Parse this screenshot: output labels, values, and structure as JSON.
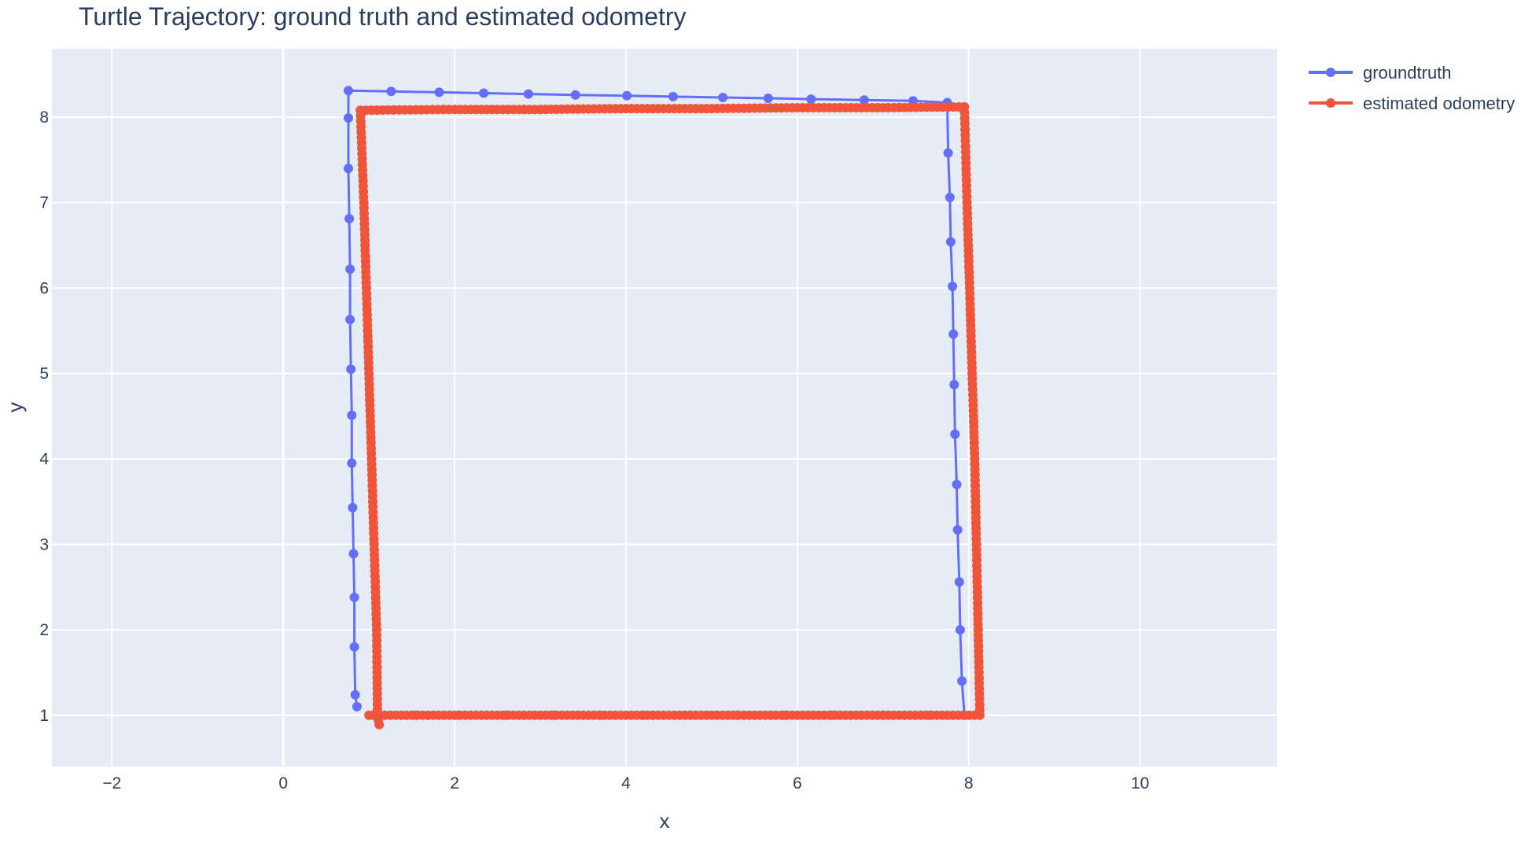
{
  "chart_data": {
    "type": "line",
    "title": "Turtle Trajectory: ground truth and estimated odometry",
    "xlabel": "x",
    "ylabel": "y",
    "xlim": [
      -2.7,
      11.6
    ],
    "ylim": [
      0.4,
      8.8
    ],
    "xticks": [
      -2,
      0,
      2,
      4,
      6,
      8,
      10
    ],
    "yticks": [
      1,
      2,
      3,
      4,
      5,
      6,
      7,
      8
    ],
    "xtick_labels": [
      "−2",
      "0",
      "2",
      "4",
      "6",
      "8",
      "10"
    ],
    "ytick_labels": [
      "1",
      "2",
      "3",
      "4",
      "5",
      "6",
      "7",
      "8"
    ],
    "grid": true,
    "legend_position": "top-right outside plot",
    "colors": {
      "plot_background": "#e5ecf6",
      "grid": "#ffffff",
      "text": "#2a3f5f"
    },
    "series": [
      {
        "name": "groundtruth",
        "color": "#636efa",
        "mode": "lines+markers",
        "points": [
          [
            0.86,
            1.1
          ],
          [
            0.84,
            1.24
          ],
          [
            0.83,
            1.8
          ],
          [
            0.83,
            2.38
          ],
          [
            0.82,
            2.89
          ],
          [
            0.81,
            3.43
          ],
          [
            0.8,
            3.95
          ],
          [
            0.8,
            4.51
          ],
          [
            0.79,
            5.05
          ],
          [
            0.78,
            5.63
          ],
          [
            0.78,
            6.22
          ],
          [
            0.77,
            6.81
          ],
          [
            0.76,
            7.4
          ],
          [
            0.76,
            7.99
          ],
          [
            0.76,
            8.31
          ],
          [
            1.26,
            8.3
          ],
          [
            1.82,
            8.29
          ],
          [
            2.34,
            8.28
          ],
          [
            2.86,
            8.27
          ],
          [
            3.41,
            8.26
          ],
          [
            4.01,
            8.25
          ],
          [
            4.55,
            8.24
          ],
          [
            5.13,
            8.23
          ],
          [
            5.66,
            8.22
          ],
          [
            6.16,
            8.21
          ],
          [
            6.78,
            8.2
          ],
          [
            7.35,
            8.19
          ],
          [
            7.75,
            8.17
          ],
          [
            7.76,
            7.58
          ],
          [
            7.78,
            7.06
          ],
          [
            7.79,
            6.54
          ],
          [
            7.81,
            6.02
          ],
          [
            7.82,
            5.46
          ],
          [
            7.83,
            4.87
          ],
          [
            7.84,
            4.29
          ],
          [
            7.86,
            3.7
          ],
          [
            7.87,
            3.17
          ],
          [
            7.89,
            2.56
          ],
          [
            7.9,
            2.0
          ],
          [
            7.92,
            1.4
          ],
          [
            7.95,
            1.0
          ],
          [
            7.55,
            1.0
          ],
          [
            7.0,
            1.0
          ],
          [
            6.4,
            1.0
          ],
          [
            5.85,
            1.0
          ],
          [
            5.3,
            1.0
          ],
          [
            4.75,
            1.0
          ],
          [
            4.2,
            1.0
          ],
          [
            3.7,
            1.0
          ],
          [
            3.15,
            1.0
          ],
          [
            2.6,
            1.0
          ],
          [
            2.05,
            1.0
          ],
          [
            1.55,
            1.0
          ],
          [
            1.05,
            1.0
          ]
        ]
      },
      {
        "name": "estimated odometry",
        "color": "#ef553b",
        "mode": "lines+markers",
        "points": [
          [
            1.12,
            0.89
          ],
          [
            1.1,
            1.0
          ],
          [
            1.09,
            2.0
          ],
          [
            1.06,
            3.0
          ],
          [
            1.03,
            4.0
          ],
          [
            1.0,
            5.0
          ],
          [
            0.97,
            6.0
          ],
          [
            0.94,
            7.0
          ],
          [
            0.9,
            8.08
          ],
          [
            2.0,
            8.09
          ],
          [
            3.0,
            8.09
          ],
          [
            4.0,
            8.1
          ],
          [
            5.0,
            8.1
          ],
          [
            6.0,
            8.11
          ],
          [
            7.0,
            8.11
          ],
          [
            7.95,
            8.12
          ],
          [
            7.98,
            7.0
          ],
          [
            8.01,
            6.0
          ],
          [
            8.04,
            5.0
          ],
          [
            8.07,
            4.0
          ],
          [
            8.09,
            3.0
          ],
          [
            8.11,
            2.0
          ],
          [
            8.13,
            1.0
          ],
          [
            7.0,
            1.0
          ],
          [
            6.0,
            1.0
          ],
          [
            5.0,
            1.0
          ],
          [
            4.0,
            1.0
          ],
          [
            3.0,
            1.0
          ],
          [
            2.0,
            1.0
          ],
          [
            1.0,
            1.0
          ]
        ]
      }
    ]
  }
}
